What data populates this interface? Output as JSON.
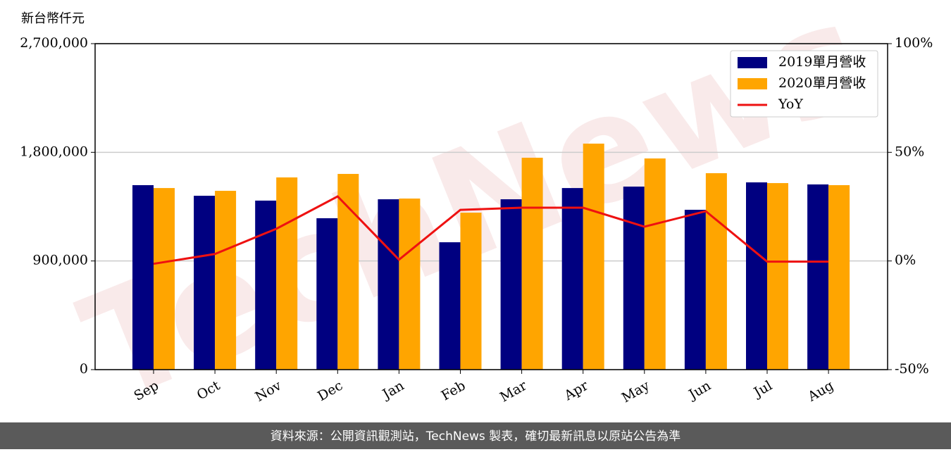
{
  "chart_data": {
    "type": "bar_line",
    "y_axis_label": "新台幣仟元",
    "watermark": "TechNews",
    "footer": "資料來源：公開資訊觀測站，TechNews 製表，確切最新訊息以原站公告為準",
    "categories": [
      "Sep",
      "Oct",
      "Nov",
      "Dec",
      "Jan",
      "Feb",
      "Mar",
      "Apr",
      "May",
      "Jun",
      "Jul",
      "Aug"
    ],
    "series": [
      {
        "name": "2019單月營收",
        "color": "#000080",
        "kind": "bar",
        "values": [
          1528000,
          1440000,
          1400000,
          1254000,
          1411000,
          1055000,
          1411000,
          1504000,
          1516000,
          1324000,
          1551000,
          1534000
        ]
      },
      {
        "name": "2020單月營收",
        "color": "#ffa500",
        "kind": "bar",
        "values": [
          1504000,
          1481000,
          1592000,
          1621000,
          1417000,
          1300000,
          1755000,
          1872000,
          1749000,
          1627000,
          1545000,
          1528000
        ]
      },
      {
        "name": "YoY",
        "color": "#ee1111",
        "kind": "line",
        "axis": "y2",
        "values": [
          -1.3,
          3.2,
          14.8,
          29.7,
          0.6,
          23.5,
          24.5,
          24.5,
          15.8,
          22.9,
          -0.3,
          -0.3
        ]
      }
    ],
    "ylim": [
      0,
      2700000
    ],
    "yticks": [
      0,
      {
        "value": 900000,
        "label": "900,000"
      },
      {
        "value": 1800000,
        "label": "1,800,000"
      },
      {
        "value": 2700000,
        "label": "2,700,000"
      }
    ],
    "y2lim": [
      -50,
      100
    ],
    "y2ticks": [
      {
        "value": -50,
        "label": "-50%"
      },
      {
        "value": 0,
        "label": "0%"
      },
      {
        "value": 50,
        "label": "50%"
      },
      {
        "value": 100,
        "label": "100%"
      }
    ],
    "grid": true,
    "legend": "upper right"
  }
}
